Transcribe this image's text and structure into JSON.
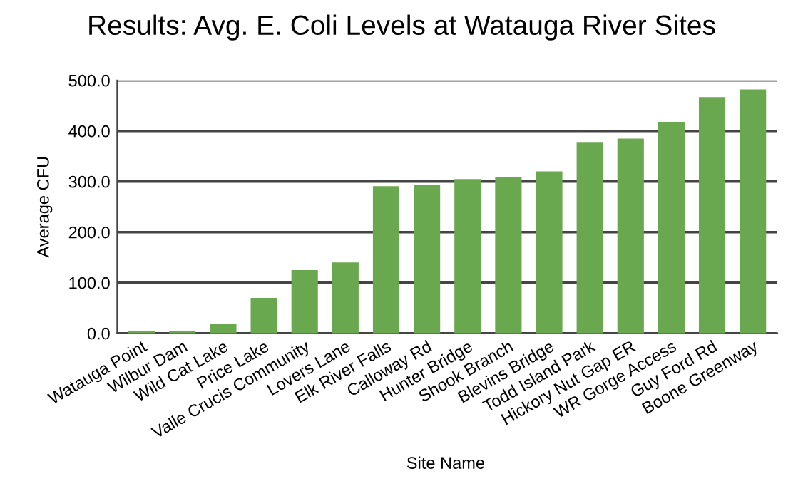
{
  "chart_data": {
    "type": "bar",
    "title": "Results: Avg. E. Coli Levels at Watauga River Sites",
    "xlabel": "Site Name",
    "ylabel": "Average CFU",
    "categories": [
      "Watauga Point",
      "Wilbur Dam",
      "Wild Cat Lake",
      "Price Lake",
      "Valle Crucis Community",
      "Lovers Lane",
      "Elk River Falls",
      "Calloway Rd",
      "Hunter Bridge",
      "Shook Branch",
      "Blevins Bridge",
      "Todd Island Park",
      "Hickory Nut Gap ER",
      "WR Gorge Access",
      "Guy Ford Rd",
      "Boone Greenway"
    ],
    "values": [
      4,
      4,
      19,
      70,
      125,
      140,
      291,
      294,
      305,
      309,
      320,
      378,
      385,
      418,
      467,
      482
    ],
    "color": "#6aa84f",
    "ylim": [
      0,
      500
    ],
    "yticks": [
      {
        "value": 0,
        "label": "0.0"
      },
      {
        "value": 100,
        "label": "100.0"
      },
      {
        "value": 200,
        "label": "200.0"
      },
      {
        "value": 300,
        "label": "300.0"
      },
      {
        "value": 400,
        "label": "400.0"
      },
      {
        "value": 500,
        "label": "500.0"
      }
    ],
    "grid": "y",
    "legend": false
  }
}
